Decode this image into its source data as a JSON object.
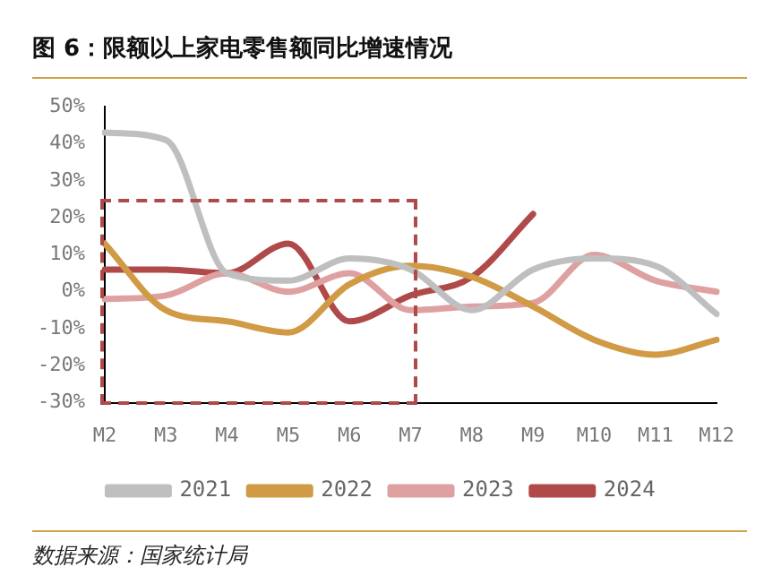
{
  "chart_data": {
    "type": "line",
    "title": "图 6：限额以上家电零售额同比增速情况",
    "annotations": [
      "数据来源：国家统计局"
    ],
    "categories": [
      "M2",
      "M3",
      "M4",
      "M5",
      "M6",
      "M7",
      "M8",
      "M9",
      "M10",
      "M11",
      "M12"
    ],
    "series": [
      {
        "name": "2021",
        "color": "#bfbfbf",
        "values": [
          43,
          41,
          5,
          3,
          9,
          6,
          -5,
          6,
          9,
          7,
          -6
        ]
      },
      {
        "name": "2022",
        "color": "#d19a45",
        "values": [
          13,
          -5,
          -8,
          -11,
          2,
          7,
          4,
          -4,
          -13,
          -17,
          -13
        ]
      },
      {
        "name": "2023",
        "color": "#dea0a0",
        "values": [
          -2,
          -1,
          5,
          0,
          5,
          -5,
          -4,
          -3,
          10,
          3,
          0
        ]
      },
      {
        "name": "2024",
        "color": "#b04a4a",
        "values": [
          6,
          6,
          5,
          13,
          -8,
          -1,
          4,
          21,
          null,
          null,
          null
        ]
      }
    ],
    "ylim": [
      -30,
      50
    ],
    "yticks": [
      {
        "value": -30,
        "label": "-30%"
      },
      {
        "value": -20,
        "label": "-20%"
      },
      {
        "value": -10,
        "label": "-10%"
      },
      {
        "value": 0,
        "label": "0%"
      },
      {
        "value": 10,
        "label": "10%"
      },
      {
        "value": 20,
        "label": "20%"
      },
      {
        "value": 30,
        "label": "30%"
      },
      {
        "value": 40,
        "label": "40%"
      },
      {
        "value": 50,
        "label": "50%"
      }
    ],
    "grid": false,
    "legend": "bottom",
    "marker": "none",
    "line_style": "solid"
  }
}
